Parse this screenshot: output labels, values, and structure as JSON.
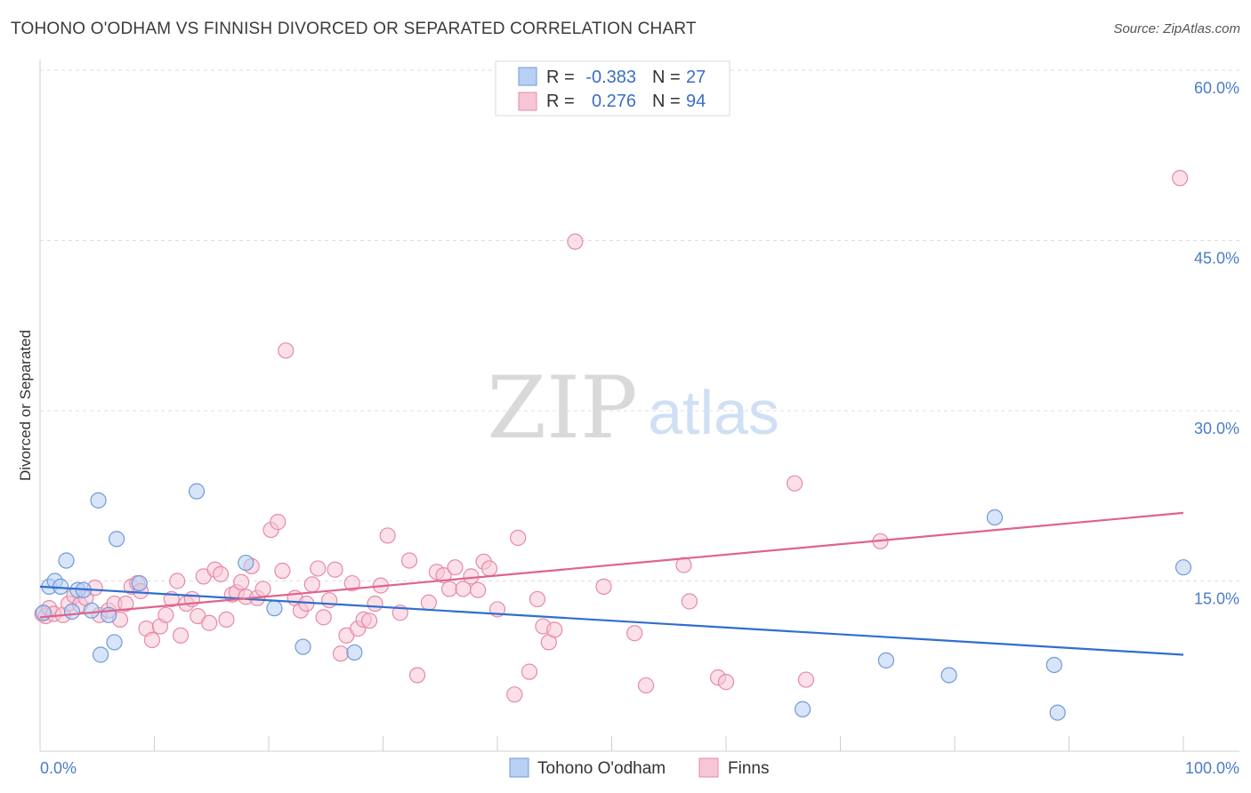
{
  "title": "TOHONO O'ODHAM VS FINNISH DIVORCED OR SEPARATED CORRELATION CHART",
  "source": "Source: ZipAtlas.com",
  "watermark": {
    "zip": "ZIP",
    "atlas": "atlas"
  },
  "colors": {
    "blue_fill": "#b8d0f3",
    "blue_stroke": "#6f9ad9",
    "blue_line": "#2f6fcf",
    "pink_fill": "#f7c6d5",
    "pink_stroke": "#e68aa8",
    "pink_line": "#e0638c",
    "grid": "#dddddd",
    "axis_text": "#4a7cc9"
  },
  "legend_top": {
    "rows": [
      {
        "r_label": "R =",
        "r_value": "-0.383",
        "n_label": "N =",
        "n_value": "27"
      },
      {
        "r_label": "R =",
        "r_value": "0.276",
        "n_label": "N =",
        "n_value": "94"
      }
    ]
  },
  "legend_bottom": {
    "items": [
      "Tohono O'odham",
      "Finns"
    ]
  },
  "chart_data": {
    "type": "scatter",
    "ylabel": "Divorced or Separated",
    "xlabel": "",
    "xlim": [
      0,
      100
    ],
    "ylim": [
      0,
      60
    ],
    "x_tick_labels": [
      "0.0%",
      "100.0%"
    ],
    "y_tick_labels": [
      "15.0%",
      "30.0%",
      "45.0%",
      "60.0%"
    ],
    "y_ticks": [
      15,
      30,
      45,
      60
    ],
    "grid": true,
    "series": [
      {
        "name": "Tohono O'odham",
        "color": "blue",
        "trendline": {
          "x": [
            0,
            100
          ],
          "y": [
            14.5,
            8.5
          ]
        },
        "points": [
          [
            0.3,
            12.2
          ],
          [
            0.8,
            14.5
          ],
          [
            1.3,
            15.0
          ],
          [
            1.8,
            14.5
          ],
          [
            2.3,
            16.8
          ],
          [
            2.8,
            12.3
          ],
          [
            3.3,
            14.2
          ],
          [
            3.8,
            14.2
          ],
          [
            4.5,
            12.4
          ],
          [
            5.1,
            22.1
          ],
          [
            5.3,
            8.5
          ],
          [
            6.0,
            12.0
          ],
          [
            6.5,
            9.6
          ],
          [
            6.7,
            18.7
          ],
          [
            8.7,
            14.8
          ],
          [
            13.7,
            22.9
          ],
          [
            18.0,
            16.6
          ],
          [
            20.5,
            12.6
          ],
          [
            23.0,
            9.2
          ],
          [
            27.5,
            8.7
          ],
          [
            66.7,
            3.7
          ],
          [
            74.0,
            8.0
          ],
          [
            79.5,
            6.7
          ],
          [
            83.5,
            20.6
          ],
          [
            88.7,
            7.6
          ],
          [
            89.0,
            3.4
          ],
          [
            100.0,
            16.2
          ]
        ]
      },
      {
        "name": "Finns",
        "color": "pink",
        "trendline": {
          "x": [
            0,
            100
          ],
          "y": [
            11.8,
            21.0
          ]
        },
        "points": [
          [
            0.2,
            12.1
          ],
          [
            0.5,
            11.9
          ],
          [
            0.8,
            12.6
          ],
          [
            1.2,
            12.1
          ],
          [
            2.0,
            12.0
          ],
          [
            2.5,
            13.0
          ],
          [
            3.0,
            13.7
          ],
          [
            3.5,
            12.9
          ],
          [
            4.0,
            13.5
          ],
          [
            4.8,
            14.4
          ],
          [
            5.2,
            12.0
          ],
          [
            6.0,
            12.4
          ],
          [
            6.5,
            13.0
          ],
          [
            7.0,
            11.6
          ],
          [
            7.5,
            13.0
          ],
          [
            8.0,
            14.5
          ],
          [
            8.5,
            14.8
          ],
          [
            8.8,
            14.1
          ],
          [
            9.3,
            10.8
          ],
          [
            9.8,
            9.8
          ],
          [
            10.5,
            11.0
          ],
          [
            11.0,
            12.0
          ],
          [
            11.5,
            13.4
          ],
          [
            12.0,
            15.0
          ],
          [
            12.3,
            10.2
          ],
          [
            12.8,
            13.0
          ],
          [
            13.3,
            13.4
          ],
          [
            13.8,
            11.9
          ],
          [
            14.3,
            15.4
          ],
          [
            14.8,
            11.3
          ],
          [
            15.3,
            16.0
          ],
          [
            15.8,
            15.6
          ],
          [
            16.3,
            11.6
          ],
          [
            16.8,
            13.8
          ],
          [
            17.2,
            14.0
          ],
          [
            17.6,
            14.9
          ],
          [
            18.0,
            13.6
          ],
          [
            18.5,
            16.3
          ],
          [
            19.0,
            13.5
          ],
          [
            19.5,
            14.3
          ],
          [
            20.2,
            19.5
          ],
          [
            20.8,
            20.2
          ],
          [
            21.2,
            15.9
          ],
          [
            21.5,
            35.3
          ],
          [
            22.3,
            13.5
          ],
          [
            22.8,
            12.4
          ],
          [
            23.3,
            13.0
          ],
          [
            23.8,
            14.7
          ],
          [
            24.3,
            16.1
          ],
          [
            24.8,
            11.8
          ],
          [
            25.3,
            13.3
          ],
          [
            25.8,
            16.0
          ],
          [
            26.3,
            8.6
          ],
          [
            26.8,
            10.2
          ],
          [
            27.3,
            14.8
          ],
          [
            27.8,
            10.8
          ],
          [
            28.3,
            11.6
          ],
          [
            28.8,
            11.5
          ],
          [
            29.3,
            13.0
          ],
          [
            29.8,
            14.6
          ],
          [
            30.4,
            19.0
          ],
          [
            31.5,
            12.2
          ],
          [
            32.3,
            16.8
          ],
          [
            33.0,
            6.7
          ],
          [
            34.0,
            13.1
          ],
          [
            34.7,
            15.8
          ],
          [
            35.3,
            15.5
          ],
          [
            35.8,
            14.3
          ],
          [
            36.3,
            16.2
          ],
          [
            37.0,
            14.3
          ],
          [
            37.7,
            15.4
          ],
          [
            38.3,
            14.2
          ],
          [
            38.8,
            16.7
          ],
          [
            39.3,
            16.1
          ],
          [
            40.0,
            12.5
          ],
          [
            41.5,
            5.0
          ],
          [
            41.8,
            18.8
          ],
          [
            42.8,
            7.0
          ],
          [
            43.5,
            13.4
          ],
          [
            44.0,
            11.0
          ],
          [
            44.5,
            9.6
          ],
          [
            45.0,
            10.7
          ],
          [
            46.8,
            44.9
          ],
          [
            49.3,
            14.5
          ],
          [
            52.0,
            10.4
          ],
          [
            53.0,
            5.8
          ],
          [
            56.3,
            16.4
          ],
          [
            56.8,
            13.2
          ],
          [
            59.3,
            6.5
          ],
          [
            60.0,
            6.1
          ],
          [
            67.0,
            6.3
          ],
          [
            66.0,
            23.6
          ],
          [
            73.5,
            18.5
          ],
          [
            99.7,
            50.5
          ]
        ]
      }
    ]
  }
}
